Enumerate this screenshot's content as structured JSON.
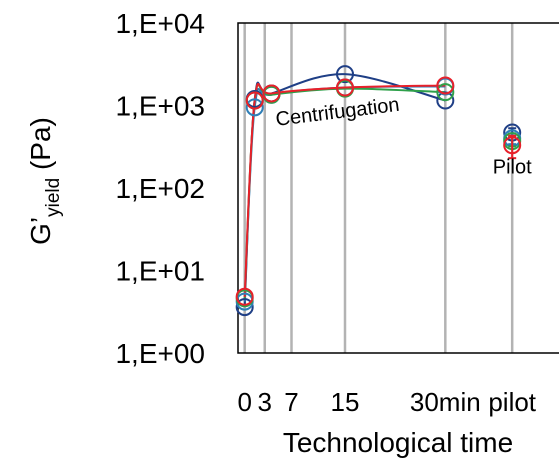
{
  "chart_data": {
    "type": "scatter",
    "yscale": "log",
    "ylim": [
      1,
      10000
    ],
    "ytick_values": [
      1,
      10,
      100,
      1000,
      10000
    ],
    "ytick_labels": [
      "1,E+00",
      "1,E+01",
      "1,E+02",
      "1,E+03",
      "1,E+04"
    ],
    "ylabel_main": "G’",
    "ylabel_sub": "yield",
    "ylabel_unit": " (Pa)",
    "xlabel": "Technological time",
    "x_categories": [
      "0",
      "3",
      "7",
      "15",
      "30min",
      "pilot"
    ],
    "x_positions": [
      0,
      3,
      7,
      15,
      30,
      40
    ],
    "xlim": [
      -1,
      47
    ],
    "grid": "vertical",
    "annotations": [
      {
        "text": "Centrifugation",
        "x": 14,
        "y": 700
      },
      {
        "text": "Pilot",
        "x": 40,
        "y": 150
      }
    ],
    "series": [
      {
        "color": "#1f3f86",
        "x": [
          0,
          1.5,
          4,
          15,
          30
        ],
        "y": [
          3.6,
          1200,
          1400,
          2400,
          1150
        ],
        "pilot": 470,
        "pilot_err": 60
      },
      {
        "color": "#2e7fb8",
        "x": [
          0,
          1.5,
          4,
          15,
          30
        ],
        "y": [
          4.2,
          950,
          1350,
          1650,
          1700
        ],
        "pilot": 400,
        "pilot_err": 60
      },
      {
        "color": "#2ea04a",
        "x": [
          0,
          1.5,
          4,
          15,
          30
        ],
        "y": [
          4.6,
          1150,
          1350,
          1600,
          1450
        ],
        "pilot": 370,
        "pilot_err": 50
      },
      {
        "color": "#e8202a",
        "x": [
          0,
          1.5,
          4,
          15,
          30
        ],
        "y": [
          4.8,
          1150,
          1400,
          1650,
          1750
        ],
        "pilot": 330,
        "pilot_err": 100
      }
    ]
  }
}
